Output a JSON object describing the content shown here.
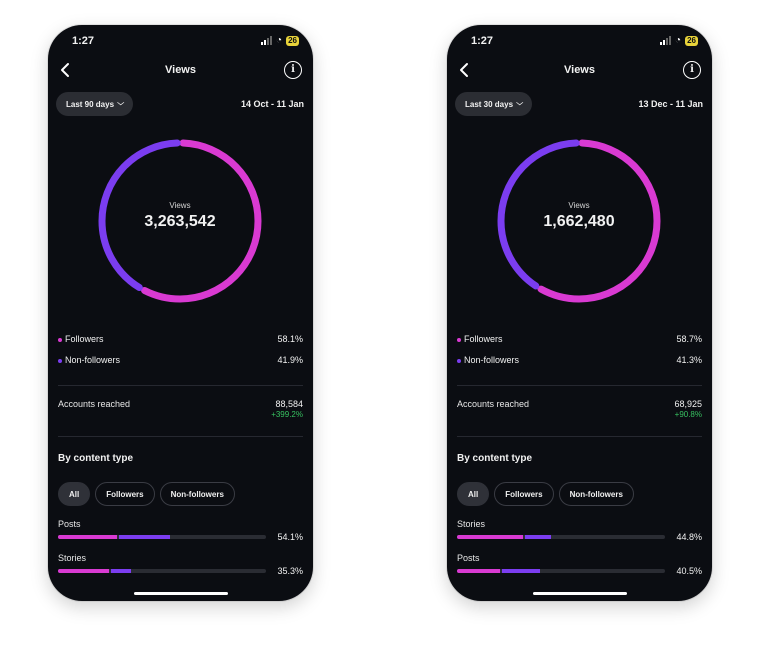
{
  "colors": {
    "followers": "#d93ad2",
    "non_followers": "#7b3df0",
    "positive": "#37c160"
  },
  "phones": [
    {
      "status_time": "1:27",
      "battery": "26",
      "title": "Views",
      "range_button": "Last 90 days",
      "date_range": "14 Oct - 11 Jan",
      "total_label": "Views",
      "total_value": "3,263,542",
      "followers_fraction": 0.581,
      "legend": [
        {
          "label": "Followers",
          "pct": "58.1%"
        },
        {
          "label": "Non-followers",
          "pct": "41.9%"
        }
      ],
      "accounts_reached": {
        "label": "Accounts reached",
        "value": "88,584",
        "delta": "+399.2%"
      },
      "content_type_title": "By content type",
      "chips": [
        "All",
        "Followers",
        "Non-followers"
      ],
      "content_types": [
        {
          "name": "Posts",
          "pct": "54.1%",
          "followers_share": 0.29,
          "non_followers_share": 0.25
        },
        {
          "name": "Stories",
          "pct": "35.3%",
          "followers_share": 0.25,
          "non_followers_share": 0.1
        }
      ]
    },
    {
      "status_time": "1:27",
      "battery": "26",
      "title": "Views",
      "range_button": "Last 30 days",
      "date_range": "13 Dec - 11 Jan",
      "total_label": "Views",
      "total_value": "1,662,480",
      "followers_fraction": 0.587,
      "legend": [
        {
          "label": "Followers",
          "pct": "58.7%"
        },
        {
          "label": "Non-followers",
          "pct": "41.3%"
        }
      ],
      "accounts_reached": {
        "label": "Accounts reached",
        "value": "68,925",
        "delta": "+90.8%"
      },
      "content_type_title": "By content type",
      "chips": [
        "All",
        "Followers",
        "Non-followers"
      ],
      "content_types": [
        {
          "name": "Stories",
          "pct": "44.8%",
          "followers_share": 0.32,
          "non_followers_share": 0.13
        },
        {
          "name": "Posts",
          "pct": "40.5%",
          "followers_share": 0.21,
          "non_followers_share": 0.19
        }
      ]
    }
  ]
}
